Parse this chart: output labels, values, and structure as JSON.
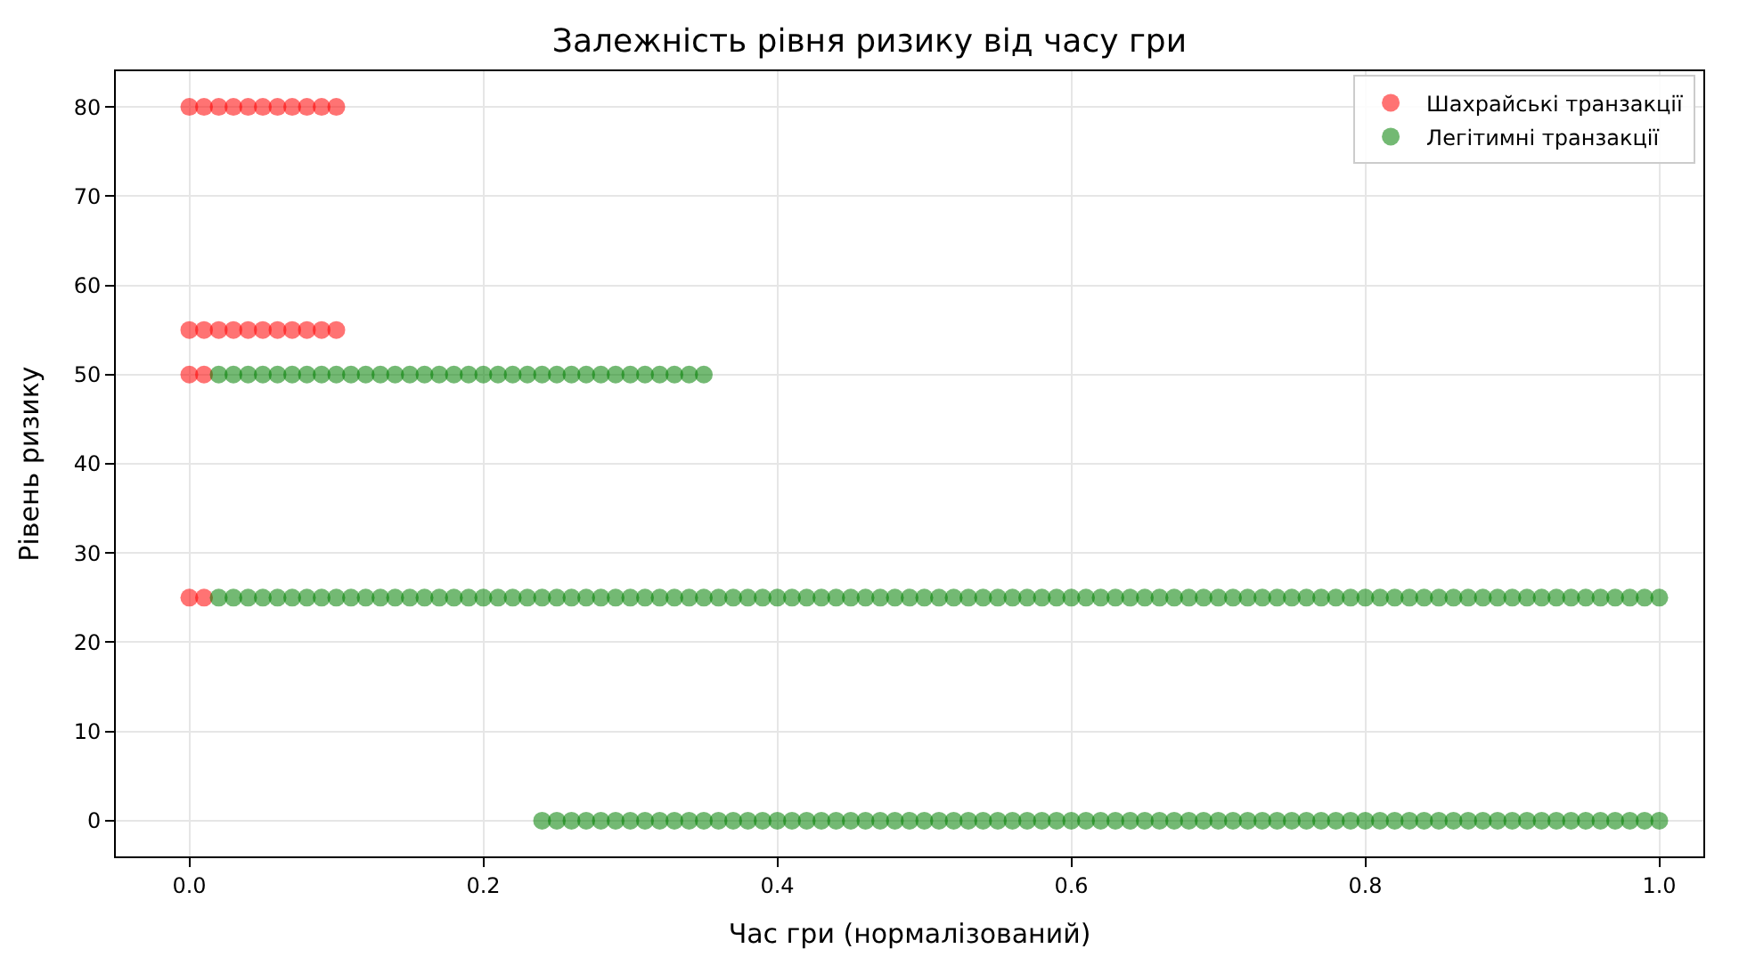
{
  "chart_data": {
    "type": "scatter",
    "title": "Залежність рівня ризику від часу гри",
    "xlabel": "Час гри (нормалізований)",
    "ylabel": "Рівень ризику",
    "xlim": [
      -0.05,
      1.03
    ],
    "xticks": [
      {
        "value": 0,
        "label": "0.0"
      },
      0.2,
      0.4,
      0.6,
      0.8,
      {
        "value": 1,
        "label": "1.0"
      }
    ],
    "ylim": [
      -4,
      84
    ],
    "yticks": [
      0,
      10,
      20,
      30,
      40,
      50,
      60,
      70,
      80
    ],
    "grid": true,
    "legend": "top right",
    "marker": "circle",
    "series": [
      {
        "name": "Шахрайські транзакції",
        "color": "#ff0000",
        "x": [
          0.0,
          0.01,
          0.02,
          0.03,
          0.04,
          0.05,
          0.06,
          0.07,
          0.08,
          0.09,
          0.1,
          0.0,
          0.01,
          0.02,
          0.03,
          0.04,
          0.05,
          0.06,
          0.07,
          0.08,
          0.09,
          0.1,
          0.0,
          0.01,
          0.0,
          0.01
        ],
        "values": [
          80,
          80,
          80,
          80,
          80,
          80,
          80,
          80,
          80,
          80,
          80,
          55,
          55,
          55,
          55,
          55,
          55,
          55,
          55,
          55,
          55,
          55,
          50,
          50,
          25,
          25
        ]
      },
      {
        "name": "Легітимні транзакції",
        "color": "#008000",
        "x": [
          0.02,
          0.03,
          0.04,
          0.05,
          0.06,
          0.07,
          0.08,
          0.09,
          0.1,
          0.11,
          0.12,
          0.13,
          0.14,
          0.15,
          0.16,
          0.17,
          0.18,
          0.19,
          0.2,
          0.21,
          0.22,
          0.23,
          0.24,
          0.25,
          0.26,
          0.27,
          0.28,
          0.29,
          0.3,
          0.31,
          0.32,
          0.33,
          0.34,
          0.35,
          0.02,
          0.03,
          0.04,
          0.05,
          0.06,
          0.07,
          0.08,
          0.09,
          0.1,
          0.11,
          0.12,
          0.13,
          0.14,
          0.15,
          0.16,
          0.17,
          0.18,
          0.19,
          0.2,
          0.21,
          0.22,
          0.23,
          0.24,
          0.25,
          0.26,
          0.27,
          0.28,
          0.29,
          0.3,
          0.31,
          0.32,
          0.33,
          0.34,
          0.35,
          0.36,
          0.37,
          0.38,
          0.39,
          0.4,
          0.41,
          0.42,
          0.43,
          0.44,
          0.45,
          0.46,
          0.47,
          0.48,
          0.49,
          0.5,
          0.51,
          0.52,
          0.53,
          0.54,
          0.55,
          0.56,
          0.57,
          0.58,
          0.59,
          0.6,
          0.61,
          0.62,
          0.63,
          0.64,
          0.65,
          0.66,
          0.67,
          0.68,
          0.69,
          0.7,
          0.71,
          0.72,
          0.73,
          0.74,
          0.75,
          0.76,
          0.77,
          0.78,
          0.79,
          0.8,
          0.81,
          0.82,
          0.83,
          0.84,
          0.85,
          0.86,
          0.87,
          0.88,
          0.89,
          0.9,
          0.91,
          0.92,
          0.93,
          0.94,
          0.95,
          0.96,
          0.97,
          0.98,
          0.99,
          1.0,
          0.24,
          0.25,
          0.26,
          0.27,
          0.28,
          0.29,
          0.3,
          0.31,
          0.32,
          0.33,
          0.34,
          0.35,
          0.36,
          0.37,
          0.38,
          0.39,
          0.4,
          0.41,
          0.42,
          0.43,
          0.44,
          0.45,
          0.46,
          0.47,
          0.48,
          0.49,
          0.5,
          0.51,
          0.52,
          0.53,
          0.54,
          0.55,
          0.56,
          0.57,
          0.58,
          0.59,
          0.6,
          0.61,
          0.62,
          0.63,
          0.64,
          0.65,
          0.66,
          0.67,
          0.68,
          0.69,
          0.7,
          0.71,
          0.72,
          0.73,
          0.74,
          0.75,
          0.76,
          0.77,
          0.78,
          0.79,
          0.8,
          0.81,
          0.82,
          0.83,
          0.84,
          0.85,
          0.86,
          0.87,
          0.88,
          0.89,
          0.9,
          0.91,
          0.92,
          0.93,
          0.94,
          0.95,
          0.96,
          0.97,
          0.98,
          0.99,
          1.0
        ],
        "values": [
          50,
          50,
          50,
          50,
          50,
          50,
          50,
          50,
          50,
          50,
          50,
          50,
          50,
          50,
          50,
          50,
          50,
          50,
          50,
          50,
          50,
          50,
          50,
          50,
          50,
          50,
          50,
          50,
          50,
          50,
          50,
          50,
          50,
          50,
          25,
          25,
          25,
          25,
          25,
          25,
          25,
          25,
          25,
          25,
          25,
          25,
          25,
          25,
          25,
          25,
          25,
          25,
          25,
          25,
          25,
          25,
          25,
          25,
          25,
          25,
          25,
          25,
          25,
          25,
          25,
          25,
          25,
          25,
          25,
          25,
          25,
          25,
          25,
          25,
          25,
          25,
          25,
          25,
          25,
          25,
          25,
          25,
          25,
          25,
          25,
          25,
          25,
          25,
          25,
          25,
          25,
          25,
          25,
          25,
          25,
          25,
          25,
          25,
          25,
          25,
          25,
          25,
          25,
          25,
          25,
          25,
          25,
          25,
          25,
          25,
          25,
          25,
          25,
          25,
          25,
          25,
          25,
          25,
          25,
          25,
          25,
          25,
          25,
          25,
          25,
          25,
          25,
          25,
          25,
          25,
          25,
          25,
          25,
          0,
          0,
          0,
          0,
          0,
          0,
          0,
          0,
          0,
          0,
          0,
          0,
          0,
          0,
          0,
          0,
          0,
          0,
          0,
          0,
          0,
          0,
          0,
          0,
          0,
          0,
          0,
          0,
          0,
          0,
          0,
          0,
          0,
          0,
          0,
          0,
          0,
          0,
          0,
          0,
          0,
          0,
          0,
          0,
          0,
          0,
          0,
          0,
          0,
          0,
          0,
          0,
          0,
          0,
          0,
          0,
          0,
          0,
          0,
          0,
          0,
          0,
          0,
          0,
          0,
          0,
          0,
          0,
          0,
          0,
          0,
          0,
          0,
          0,
          0,
          0,
          0
        ]
      }
    ]
  }
}
